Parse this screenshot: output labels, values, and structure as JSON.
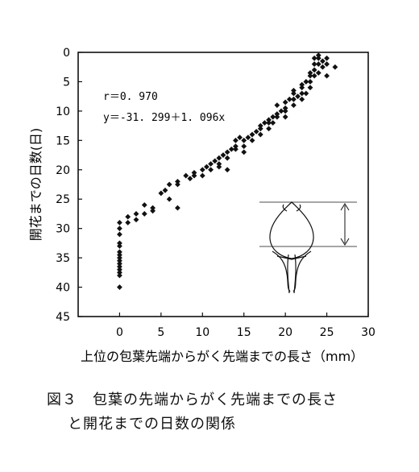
{
  "chart_data": {
    "type": "scatter",
    "xlabel": "上位の包葉先端からがく先端までの長さ（mm）",
    "ylabel": "開花までの日数(日)",
    "xlim": [
      -5,
      30
    ],
    "ylim": [
      0,
      45
    ],
    "y_inverted": true,
    "xticks": [
      "0",
      "5",
      "10",
      "15",
      "20",
      "25",
      "30"
    ],
    "yticks": [
      "0",
      "5",
      "10",
      "15",
      "20",
      "25",
      "30",
      "35",
      "40",
      "45"
    ],
    "annotations": [
      "r＝0. 970",
      "y＝-31. 299＋1. 096x"
    ],
    "grid": false,
    "points": [
      [
        0,
        29
      ],
      [
        0,
        30
      ],
      [
        0,
        31
      ],
      [
        0,
        32.5
      ],
      [
        0,
        33
      ],
      [
        0,
        34
      ],
      [
        0,
        34.5
      ],
      [
        0,
        35
      ],
      [
        0,
        35.5
      ],
      [
        0,
        36
      ],
      [
        0,
        36.5
      ],
      [
        0,
        37
      ],
      [
        0,
        37.5
      ],
      [
        0,
        38
      ],
      [
        0,
        40
      ],
      [
        1,
        28
      ],
      [
        1,
        29
      ],
      [
        2,
        27.5
      ],
      [
        2,
        28.5
      ],
      [
        3,
        26
      ],
      [
        3,
        27.5
      ],
      [
        4,
        26.5
      ],
      [
        4,
        27
      ],
      [
        5,
        24
      ],
      [
        5.5,
        23.5
      ],
      [
        6,
        25
      ],
      [
        6,
        22.5
      ],
      [
        7,
        22
      ],
      [
        7,
        26.5
      ],
      [
        7,
        22.5
      ],
      [
        8,
        21
      ],
      [
        8.5,
        21.5
      ],
      [
        9,
        21
      ],
      [
        9,
        20.5
      ],
      [
        10,
        20
      ],
      [
        10,
        21
      ],
      [
        10.5,
        19.5
      ],
      [
        11,
        20
      ],
      [
        11,
        19
      ],
      [
        11.5,
        18.5
      ],
      [
        12,
        18
      ],
      [
        12,
        19
      ],
      [
        12,
        19.5
      ],
      [
        12.5,
        17.5
      ],
      [
        13,
        17
      ],
      [
        13,
        18
      ],
      [
        13,
        20
      ],
      [
        13.5,
        16.5
      ],
      [
        14,
        16
      ],
      [
        14,
        16.5
      ],
      [
        14,
        15
      ],
      [
        14.5,
        14.5
      ],
      [
        15,
        15
      ],
      [
        15,
        16
      ],
      [
        15,
        17
      ],
      [
        15.5,
        14.5
      ],
      [
        16,
        14
      ],
      [
        16,
        15
      ],
      [
        16.5,
        13.5
      ],
      [
        17,
        13
      ],
      [
        17,
        14
      ],
      [
        17,
        12.5
      ],
      [
        17.5,
        12
      ],
      [
        18,
        12
      ],
      [
        18,
        11.5
      ],
      [
        18,
        13
      ],
      [
        18.5,
        11
      ],
      [
        18.5,
        12
      ],
      [
        19,
        11
      ],
      [
        19,
        10.5
      ],
      [
        19,
        9
      ],
      [
        19.5,
        10
      ],
      [
        20,
        9.5
      ],
      [
        20,
        10
      ],
      [
        20,
        8.5
      ],
      [
        20,
        11
      ],
      [
        20.5,
        8
      ],
      [
        21,
        8
      ],
      [
        21,
        7
      ],
      [
        21,
        9
      ],
      [
        21,
        6.5
      ],
      [
        21.5,
        7.5
      ],
      [
        22,
        6
      ],
      [
        22,
        7
      ],
      [
        22,
        5.5
      ],
      [
        22,
        8
      ],
      [
        22.5,
        5
      ],
      [
        22.5,
        7
      ],
      [
        23,
        4
      ],
      [
        23,
        5
      ],
      [
        23,
        6
      ],
      [
        23,
        3.5
      ],
      [
        23.5,
        2
      ],
      [
        23.5,
        3
      ],
      [
        23.5,
        4
      ],
      [
        23.5,
        1
      ],
      [
        24,
        0.5
      ],
      [
        24,
        1
      ],
      [
        24,
        2
      ],
      [
        24,
        3.5
      ],
      [
        24.5,
        1.5
      ],
      [
        24.5,
        2.5
      ],
      [
        25,
        1
      ],
      [
        25,
        2
      ],
      [
        25,
        4
      ],
      [
        26,
        2.5
      ]
    ]
  },
  "captions": {
    "line1": "図３　包葉の先端からがく先端までの長さ",
    "line2": "と開花までの日数の関係"
  }
}
